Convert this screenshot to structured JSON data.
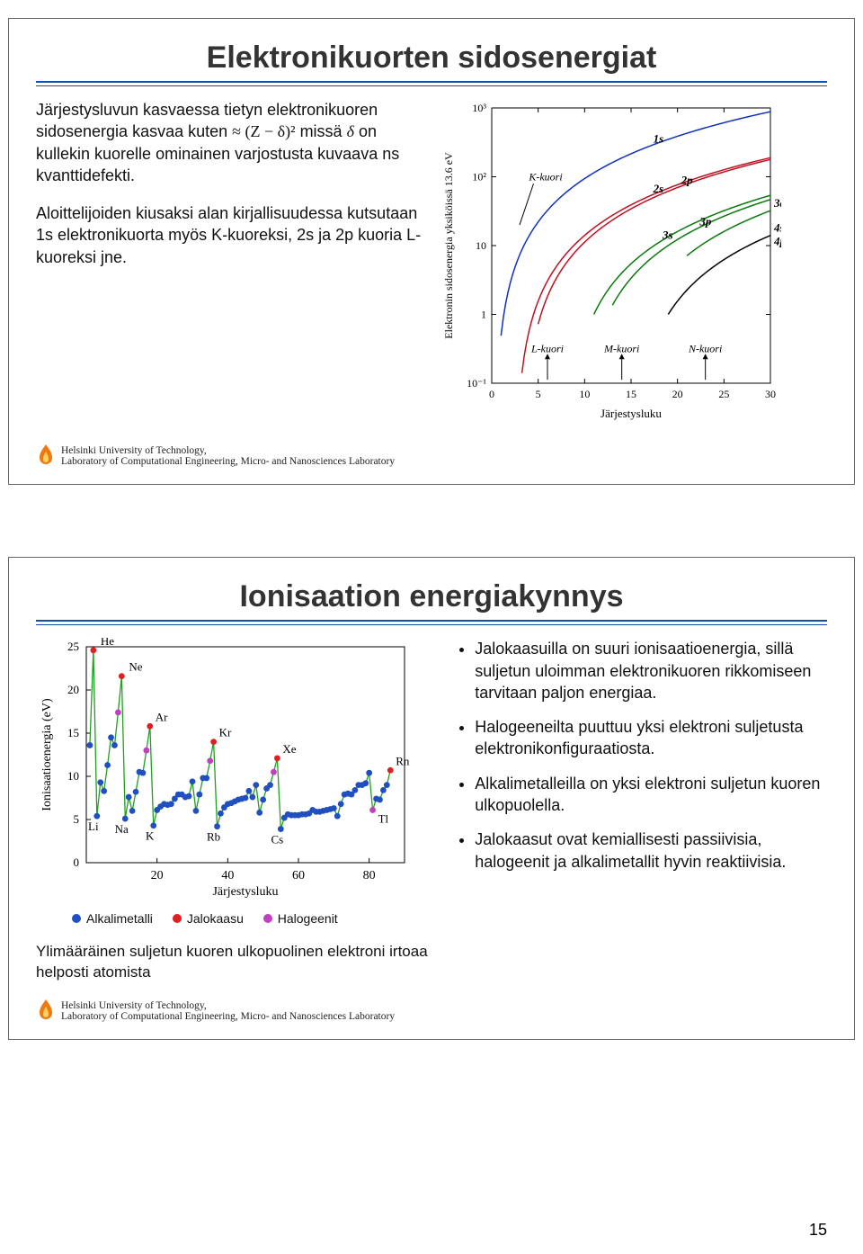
{
  "slide1": {
    "title": "Elektronikuorten sidosenergiat",
    "para1_a": "Järjestysluvun kasvaessa tietyn elektronikuoren sidosenergia kasvaa kuten ",
    "para1_formula": "≈ (Z − δ)²",
    "para1_b": " missä ",
    "para1_delta": "δ",
    "para1_c": " on kullekin kuorelle ominainen varjostusta kuvaava ns kvanttidefekti.",
    "para2": "Aloittelijoiden kiusaksi alan kirjallisuudessa kutsutaan 1s elektronikuorta myös K-kuoreksi, 2s ja 2p kuoria L-kuoreksi jne.",
    "chart": {
      "type": "line-log",
      "xlabel": "Järjestysluku",
      "ylabel": "Elektronin sidosenergia yksiköissä 13.6 eV",
      "xlim": [
        0,
        30
      ],
      "xticks": [
        0,
        5,
        10,
        15,
        20,
        25,
        30
      ],
      "ylim_exp": [
        -1,
        3
      ],
      "ytick_labels": [
        "10⁻¹",
        "1",
        "10",
        "10²",
        "10³"
      ],
      "series": [
        {
          "name": "1s",
          "color": "#1030c0",
          "stroke": 1.5
        },
        {
          "name": "2s",
          "color": "#c01020",
          "stroke": 1.5
        },
        {
          "name": "2p",
          "color": "#c01020",
          "stroke": 1.5
        },
        {
          "name": "3s",
          "color": "#0a7a0a",
          "stroke": 1.5
        },
        {
          "name": "3p",
          "color": "#0a7a0a",
          "stroke": 1.5
        },
        {
          "name": "3d",
          "color": "#0a7a0a",
          "stroke": 1.5
        },
        {
          "name": "4s",
          "color": "#000000",
          "stroke": 1.5
        },
        {
          "name": "4p",
          "color": "#000000",
          "stroke": 1.5
        }
      ],
      "annotations": [
        "K-kuori",
        "L-kuori",
        "M-kuori",
        "N-kuori"
      ],
      "border_color": "#000000",
      "bg": "#ffffff"
    }
  },
  "slide2": {
    "title": "Ionisaation energiakynnys",
    "chart": {
      "type": "scatter-line",
      "xlabel": "Järjestysluku",
      "ylabel": "Ionisaatioenergia (eV)",
      "xlim": [
        0,
        90
      ],
      "xticks": [
        20,
        40,
        60,
        80
      ],
      "ylim": [
        0,
        25
      ],
      "yticks": [
        0,
        5,
        10,
        15,
        20,
        25
      ],
      "data_y": [
        13.6,
        24.6,
        5.4,
        9.3,
        8.3,
        11.3,
        14.5,
        13.6,
        17.4,
        21.6,
        5.1,
        7.6,
        6.0,
        8.2,
        10.5,
        10.4,
        13.0,
        15.8,
        4.3,
        6.1,
        6.5,
        6.8,
        6.7,
        6.8,
        7.4,
        7.9,
        7.9,
        7.6,
        7.7,
        9.4,
        6.0,
        7.9,
        9.8,
        9.8,
        11.8,
        14.0,
        4.2,
        5.7,
        6.4,
        6.8,
        6.9,
        7.1,
        7.3,
        7.4,
        7.5,
        8.3,
        7.6,
        9.0,
        5.8,
        7.3,
        8.6,
        9.0,
        10.5,
        12.1,
        3.9,
        5.2,
        5.6,
        5.5,
        5.5,
        5.5,
        5.6,
        5.6,
        5.7,
        6.1,
        5.9,
        5.9,
        6.0,
        6.1,
        6.2,
        6.3,
        5.4,
        6.8,
        7.9,
        8.0,
        7.9,
        8.4,
        9.0,
        9.0,
        9.2,
        10.4,
        6.1,
        7.4,
        7.3,
        8.4,
        9,
        10.7
      ],
      "line_color": "#20a020",
      "default_marker": "#2050c0",
      "noble_indices": [
        2,
        10,
        18,
        36,
        54,
        86
      ],
      "noble_labels": [
        "He",
        "Ne",
        "Ar",
        "Kr",
        "Xe",
        "Rn"
      ],
      "noble_color": "#e02020",
      "alkali_indices": [
        3,
        11,
        19,
        37,
        55
      ],
      "alkali_labels": [
        "Li",
        "Na",
        "K",
        "Rb",
        "Cs"
      ],
      "alkali_color": "#2050c0",
      "halogen_indices": [
        9,
        17,
        35,
        53,
        81
      ],
      "halogen_labels": [
        "",
        "",
        "",
        "",
        "Tl"
      ],
      "halogen_color": "#c040c0",
      "border_color": "#000000",
      "bg": "#ffffff"
    },
    "legend": {
      "alkali": "Alkalimetalli",
      "noble": "Jalokaasu",
      "halogen": "Halogeenit"
    },
    "caption": "Ylimääräinen suljetun kuoren ulkopuolinen elektroni irtoaa helposti atomista",
    "bullets": [
      "Jalokaasuilla on suuri ionisaatioenergia, sillä suljetun uloimman elektronikuoren rikkomiseen tarvitaan paljon energiaa.",
      "Halogeeneilta puuttuu yksi elektroni suljetusta elektronikonfiguraatiosta.",
      "Alkalimetalleilla on yksi elektroni suljetun kuoren ulkopuolella.",
      "Jalokaasut ovat kemiallisesti passiivisia, halogeenit ja alkalimetallit hyvin reaktiivisia."
    ]
  },
  "footer": {
    "line1": "Helsinki University of Technology,",
    "line2": "Laboratory of Computational Engineering, Micro- and Nanosciences Laboratory"
  },
  "page_number": "15",
  "colors": {
    "rule": "#1050b0",
    "flame": "#f07810"
  }
}
